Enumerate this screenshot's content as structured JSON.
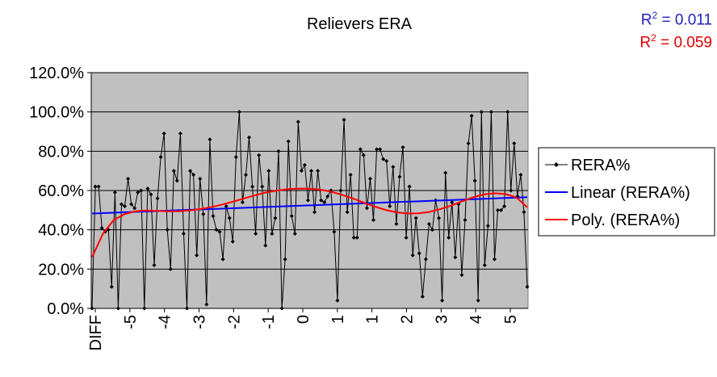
{
  "r2": {
    "linear_prefix": "R",
    "linear_exp": "2",
    "linear_value": " = 0.011",
    "poly_prefix": "R",
    "poly_exp": "2",
    "poly_value": " = 0.059"
  },
  "colors": {
    "plot_bg": "#c0c0c0",
    "series": "#000000",
    "linear": "#0000ff",
    "poly": "#ff0000"
  },
  "chart_data": {
    "type": "line",
    "title": "Relievers ERA",
    "xlabel": "",
    "ylabel": "",
    "ylim": [
      0,
      120
    ],
    "y_ticks": [
      "0.0%",
      "20.0%",
      "40.0%",
      "60.0%",
      "80.0%",
      "100.0%",
      "120.0%"
    ],
    "x_tick_labels": [
      "DIFF",
      "-5",
      "-4",
      "-3",
      "-2",
      "-1",
      "0",
      "1",
      "1",
      "2",
      "3",
      "4",
      "5"
    ],
    "grid": true,
    "legend_position": "right",
    "legend": [
      "RERA%",
      "Linear (RERA%)",
      "Poly. (RERA%)"
    ],
    "series": [
      {
        "name": "RERA%",
        "marker": "diamond",
        "values": [
          0,
          62,
          62,
          41,
          39,
          40,
          11,
          59,
          0,
          53,
          52,
          66,
          53,
          51,
          59,
          60,
          0,
          61,
          58,
          22,
          56,
          77,
          89,
          40,
          20,
          70,
          65,
          89,
          38,
          0,
          70,
          68,
          27,
          66,
          48,
          2,
          86,
          47,
          40,
          39,
          25,
          52,
          46,
          34,
          77,
          100,
          54,
          68,
          87,
          62,
          38,
          78,
          62,
          32,
          70,
          38,
          46,
          80,
          0,
          25,
          85,
          47,
          38,
          95,
          70,
          73,
          55,
          70,
          49,
          70,
          55,
          54,
          57,
          60,
          39,
          4,
          60,
          96,
          49,
          68,
          36,
          36,
          81,
          78,
          51,
          66,
          45,
          81,
          81,
          76,
          75,
          52,
          72,
          43,
          67,
          82,
          36,
          62,
          27,
          46,
          28,
          6,
          25,
          43,
          40,
          55,
          46,
          4,
          69,
          36,
          54,
          26,
          53,
          17,
          45,
          84,
          98,
          65,
          4,
          100,
          22,
          42,
          100,
          25,
          50,
          50,
          52,
          100,
          60,
          84,
          57,
          68,
          49,
          11
        ]
      },
      {
        "name": "Linear (RERA%)",
        "values": [
          48.3,
          56.6
        ]
      },
      {
        "name": "Poly. (RERA%)",
        "values": [
          26,
          38,
          45,
          48,
          49.5,
          49.8,
          49.6,
          49.4,
          49.5,
          49.9,
          50.6,
          51.6,
          52.9,
          54.4,
          56,
          57.6,
          59,
          60,
          60.7,
          61,
          60.9,
          60.4,
          59.4,
          57.8,
          55.9,
          53.8,
          51.8,
          50.1,
          48.9,
          48.3,
          48.4,
          49.1,
          50.5,
          52.3,
          54.5,
          56.5,
          58,
          58.6,
          58.2,
          56.5,
          51.5
        ]
      }
    ]
  }
}
